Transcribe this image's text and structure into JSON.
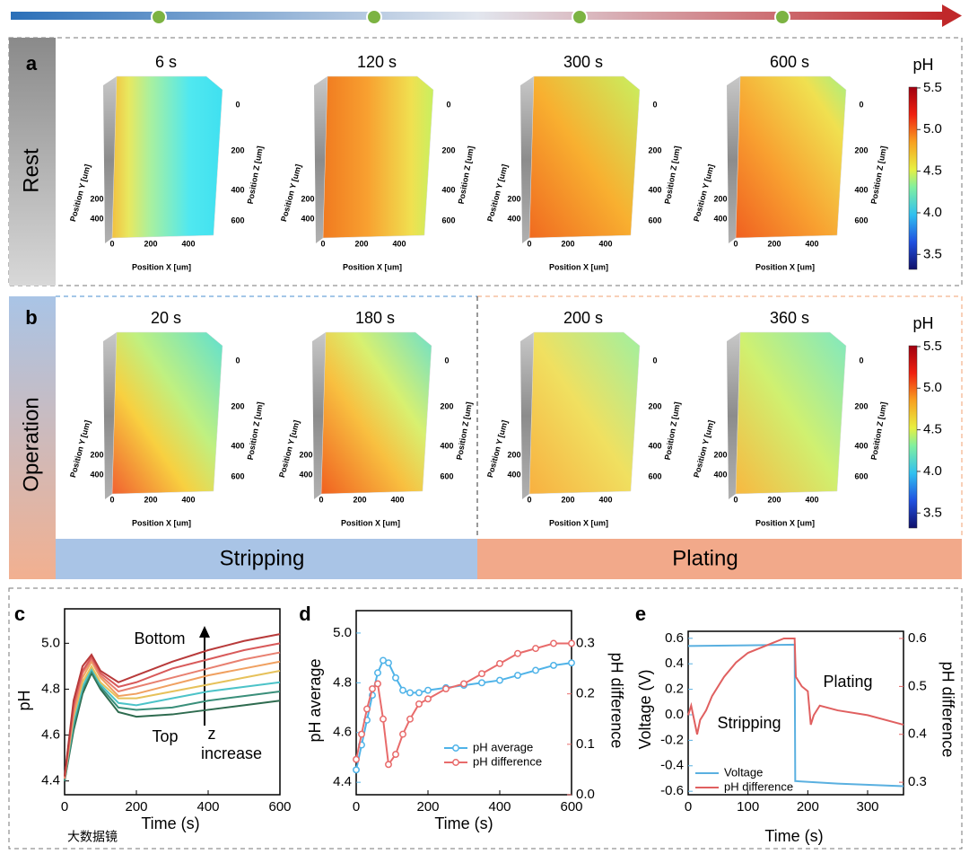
{
  "panel_a": {
    "label": "a",
    "row_label": "Rest",
    "times": [
      "6 s",
      "120 s",
      "300 s",
      "600 s"
    ],
    "x_label": "Position X [um]",
    "y_label": "Position Y [um]",
    "z_label": "Position Z [um]",
    "x_ticks": [
      0,
      200,
      400
    ],
    "y_ticks": [
      200,
      400
    ],
    "z_ticks": [
      0,
      200,
      400,
      600
    ],
    "colorbar": {
      "title": "pH",
      "lim": [
        3.32,
        5.51
      ],
      "ticks": [
        5.5,
        {
          "value": 5,
          "label": "5.0"
        },
        4.5,
        {
          "value": 4,
          "label": "4.0"
        },
        3.5
      ]
    }
  },
  "panel_b": {
    "label": "b",
    "row_label": "Operation",
    "times": [
      "20 s",
      "180 s",
      "200 s",
      "360 s"
    ],
    "x_label": "Position X [um]",
    "y_label": "Position Y [um]",
    "z_label": "Position Z [um]",
    "x_ticks": [
      0,
      200,
      400
    ],
    "y_ticks": [
      200,
      400
    ],
    "z_ticks": [
      0,
      200,
      400,
      600
    ],
    "phases": [
      "Stripping",
      "Plating"
    ],
    "colorbar": {
      "title": "pH",
      "lim": [
        3.32,
        5.51
      ],
      "ticks": [
        5.5,
        {
          "value": 5,
          "label": "5.0"
        },
        4.5,
        {
          "value": 4,
          "label": "4.0"
        },
        3.5
      ]
    }
  },
  "chart_data": [
    {
      "type": "line",
      "panel_label": "c",
      "xlabel": "Time (s)",
      "ylabel": "pH",
      "annotations": [
        "Bottom",
        "Top",
        "z",
        "increase"
      ],
      "x": [
        0,
        25,
        50,
        75,
        100,
        150,
        200,
        300,
        400,
        500,
        600
      ],
      "xlim": [
        0,
        600
      ],
      "xticks": [
        0,
        200,
        400,
        600
      ],
      "ylim": [
        4.34,
        5.15
      ],
      "yticks": [
        4.4,
        4.6,
        4.8,
        {
          "value": 5,
          "label": "5.0"
        }
      ],
      "series": [
        {
          "color": "#2e6b4f",
          "values": [
            4.4,
            4.62,
            4.78,
            4.87,
            4.8,
            4.7,
            4.68,
            4.69,
            4.71,
            4.73,
            4.75
          ]
        },
        {
          "color": "#3a8f7a",
          "values": [
            4.4,
            4.64,
            4.8,
            4.88,
            4.81,
            4.72,
            4.71,
            4.72,
            4.75,
            4.77,
            4.79
          ]
        },
        {
          "color": "#4cc3c8",
          "values": [
            4.41,
            4.66,
            4.81,
            4.89,
            4.82,
            4.74,
            4.73,
            4.76,
            4.79,
            4.81,
            4.83
          ]
        },
        {
          "color": "#e6c15a",
          "values": [
            4.41,
            4.68,
            4.83,
            4.9,
            4.83,
            4.76,
            4.76,
            4.79,
            4.82,
            4.85,
            4.88
          ]
        },
        {
          "color": "#f0a060",
          "values": [
            4.41,
            4.69,
            4.85,
            4.92,
            4.85,
            4.77,
            4.78,
            4.82,
            4.86,
            4.89,
            4.92
          ]
        },
        {
          "color": "#e88070",
          "values": [
            4.41,
            4.71,
            4.87,
            4.93,
            4.86,
            4.79,
            4.81,
            4.85,
            4.89,
            4.93,
            4.96
          ]
        },
        {
          "color": "#d85a5a",
          "values": [
            4.42,
            4.73,
            4.88,
            4.94,
            4.87,
            4.81,
            4.83,
            4.89,
            4.93,
            4.97,
            5.0
          ]
        },
        {
          "color": "#b83a3a",
          "values": [
            4.42,
            4.75,
            4.9,
            4.95,
            4.88,
            4.83,
            4.86,
            4.92,
            4.97,
            5.01,
            5.04
          ]
        }
      ]
    },
    {
      "type": "line",
      "panel_label": "d",
      "xlabel": "Time (s)",
      "ylabel": "pH average",
      "y2label": "pH difference",
      "markers": true,
      "legend": "center right",
      "x": [
        0,
        15,
        30,
        45,
        60,
        75,
        90,
        110,
        130,
        150,
        175,
        200,
        250,
        300,
        350,
        400,
        450,
        500,
        550,
        600
      ],
      "xlim": [
        0,
        600
      ],
      "xticks": [
        0,
        200,
        400,
        600
      ],
      "ylim": [
        4.35,
        5.09
      ],
      "yticks": [
        4.4,
        4.6,
        4.8,
        {
          "value": 5,
          "label": "5.0"
        }
      ],
      "y2lim": [
        0,
        0.365
      ],
      "y2ticks": [
        {
          "value": 0,
          "label": "0.0"
        },
        0.1,
        0.2,
        0.3
      ],
      "series": [
        {
          "name": "pH average",
          "color": "#4fb3e8",
          "values": [
            4.45,
            4.55,
            4.65,
            4.75,
            4.84,
            4.89,
            4.88,
            4.82,
            4.77,
            4.76,
            4.76,
            4.77,
            4.78,
            4.79,
            4.8,
            4.81,
            4.83,
            4.85,
            4.87,
            4.88
          ]
        },
        {
          "name": "pH difference",
          "color": "#e86b6b",
          "axis": "y2",
          "values": [
            0.07,
            0.12,
            0.17,
            0.21,
            0.22,
            0.15,
            0.06,
            0.08,
            0.12,
            0.15,
            0.18,
            0.19,
            0.21,
            0.22,
            0.24,
            0.26,
            0.28,
            0.29,
            0.3,
            0.3
          ]
        }
      ]
    },
    {
      "type": "line",
      "panel_label": "e",
      "xlabel": "Time (s)",
      "ylabel": "Voltage (V)",
      "y2label": "pH difference",
      "annotations": [
        "Stripping",
        "Plating"
      ],
      "legend": "lower left",
      "xlim": [
        0,
        360
      ],
      "xticks": [
        0,
        100,
        200,
        300
      ],
      "ylim": [
        -0.627,
        0.655
      ],
      "yticks": [
        -0.6,
        -0.4,
        -0.2,
        {
          "value": 0,
          "label": "0.0"
        },
        0.2,
        0.4,
        0.6
      ],
      "y2lim": [
        0.274,
        0.615
      ],
      "y2ticks": [
        0.3,
        0.4,
        0.5,
        0.6
      ],
      "series": [
        {
          "name": "Voltage",
          "color": "#5ab0e0",
          "x": [
            0,
            100,
            178,
            179,
            250,
            360
          ],
          "values": [
            0.54,
            0.545,
            0.55,
            -0.52,
            -0.54,
            -0.56
          ]
        },
        {
          "name": "pH difference",
          "color": "#e06060",
          "axis": "y2",
          "x": [
            0,
            5,
            10,
            15,
            20,
            30,
            40,
            60,
            80,
            100,
            120,
            140,
            160,
            170,
            178,
            180,
            190,
            200,
            205,
            210,
            220,
            250,
            300,
            360
          ],
          "values": [
            0.44,
            0.46,
            0.43,
            0.4,
            0.43,
            0.45,
            0.48,
            0.52,
            0.55,
            0.57,
            0.58,
            0.59,
            0.6,
            0.6,
            0.6,
            0.52,
            0.5,
            0.49,
            0.42,
            0.44,
            0.46,
            0.45,
            0.44,
            0.42
          ]
        }
      ]
    }
  ],
  "watermark": "大数据镜"
}
